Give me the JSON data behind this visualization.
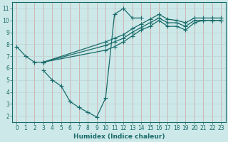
{
  "background_color": "#cde8e8",
  "grid_color": "#b0d4d4",
  "line_color": "#1a6b6b",
  "xlabel": "Humidex (Indice chaleur)",
  "xlim": [
    -0.5,
    23.5
  ],
  "ylim": [
    1.5,
    11.5
  ],
  "xticks": [
    0,
    1,
    2,
    3,
    4,
    5,
    6,
    7,
    8,
    9,
    10,
    11,
    12,
    13,
    14,
    15,
    16,
    17,
    18,
    19,
    20,
    21,
    22,
    23
  ],
  "yticks": [
    2,
    3,
    4,
    5,
    6,
    7,
    8,
    9,
    10,
    11
  ],
  "lines": [
    {
      "x": [
        0,
        1,
        2,
        3
      ],
      "y": [
        7.8,
        7.0,
        6.5,
        6.5
      ]
    },
    {
      "x": [
        3,
        4,
        5,
        6,
        7,
        8,
        9,
        10,
        11,
        12,
        13,
        14
      ],
      "y": [
        5.8,
        5.0,
        4.5,
        3.2,
        2.7,
        2.3,
        1.9,
        3.5,
        10.5,
        11.0,
        10.2,
        10.2
      ]
    },
    {
      "x": [
        3,
        10,
        11,
        12,
        13,
        14,
        15,
        16,
        17,
        18,
        19,
        20,
        21,
        22,
        23
      ],
      "y": [
        6.5,
        7.5,
        7.8,
        8.2,
        8.7,
        9.2,
        9.5,
        10.0,
        9.5,
        9.5,
        9.2,
        9.8,
        10.0,
        10.0,
        10.0
      ]
    },
    {
      "x": [
        3,
        10,
        11,
        12,
        13,
        14,
        15,
        16,
        17,
        18,
        19,
        20,
        21,
        22,
        23
      ],
      "y": [
        6.5,
        7.9,
        8.2,
        8.5,
        9.0,
        9.4,
        9.8,
        10.2,
        9.8,
        9.8,
        9.5,
        10.0,
        10.0,
        10.0,
        10.0
      ]
    },
    {
      "x": [
        3,
        10,
        11,
        12,
        13,
        14,
        15,
        16,
        17,
        18,
        19,
        20,
        21,
        22,
        23
      ],
      "y": [
        6.5,
        8.2,
        8.5,
        8.8,
        9.3,
        9.7,
        10.1,
        10.5,
        10.1,
        10.0,
        9.8,
        10.2,
        10.2,
        10.2,
        10.2
      ]
    }
  ],
  "marker": "+",
  "marker_size": 4.0,
  "linewidth": 0.9,
  "tick_fontsize": 5.5,
  "xlabel_fontsize": 6.5
}
